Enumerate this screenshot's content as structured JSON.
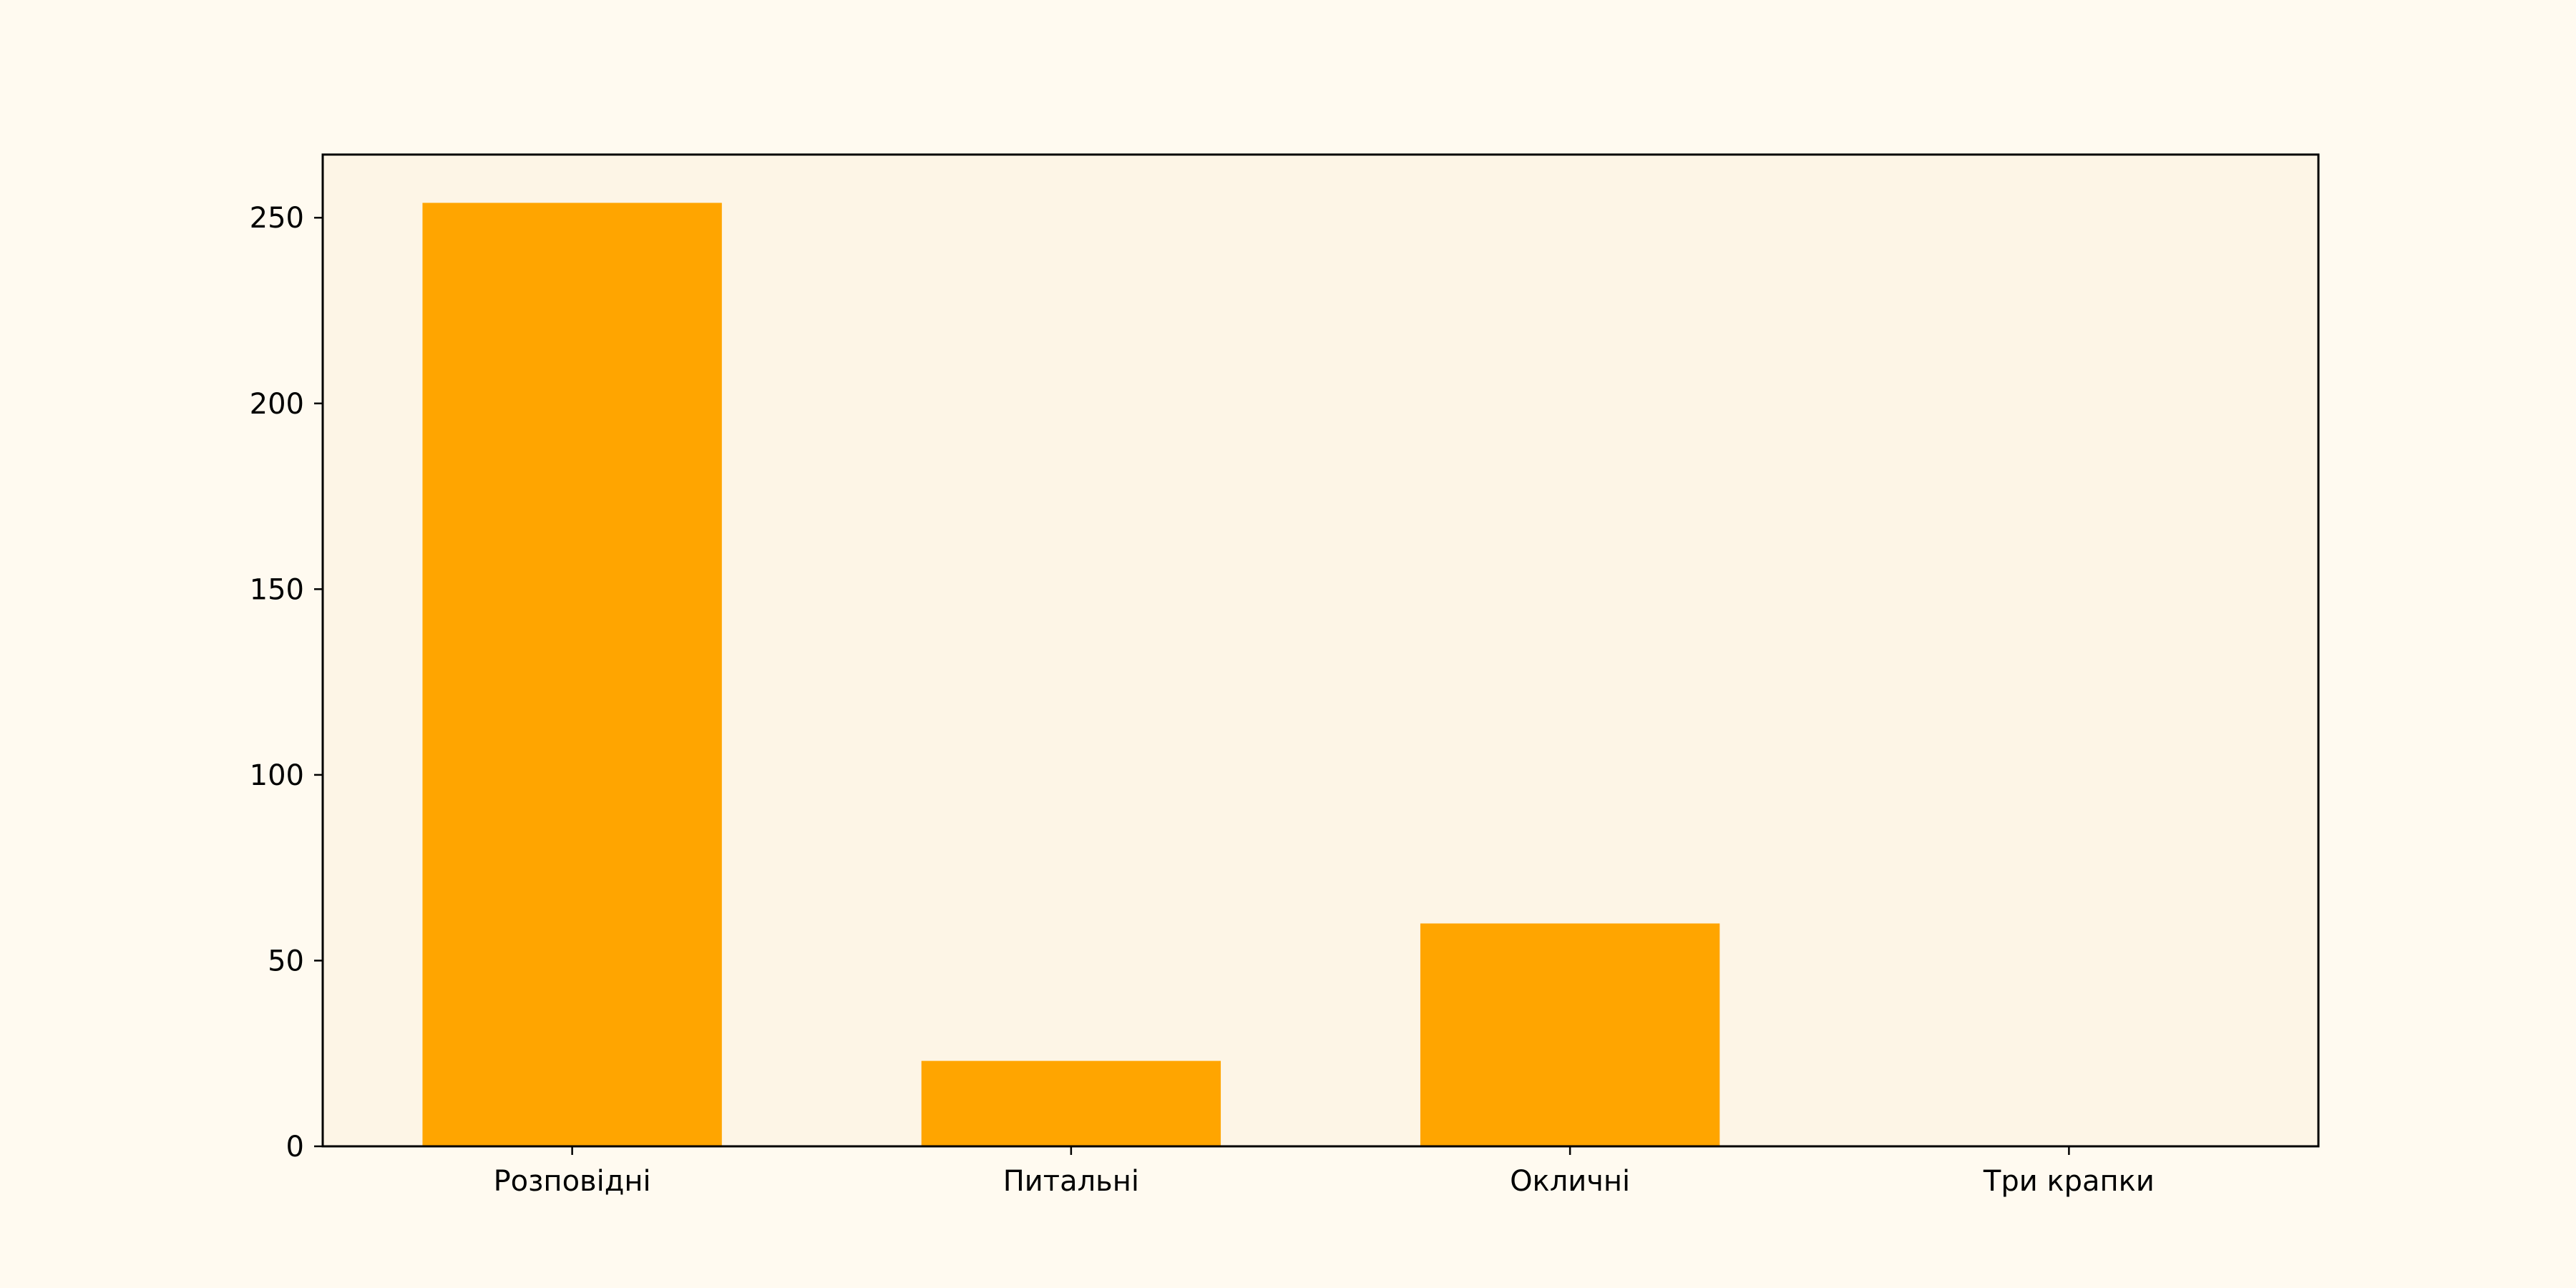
{
  "chart_data": {
    "type": "bar",
    "categories": [
      "Розповідні",
      "Питальні",
      "Окличні",
      "Три крапки"
    ],
    "values": [
      254,
      23,
      60,
      0
    ],
    "title": "",
    "xlabel": "",
    "ylabel": "",
    "ylim": [
      0,
      267
    ],
    "yticks": [
      0,
      50,
      100,
      150,
      200,
      250
    ],
    "grid": false,
    "legend": "none"
  },
  "colors": {
    "figure_background": "#fffaf0",
    "plot_background": "#fdf5e6",
    "bar": "#ffa500",
    "axis": "#000000"
  }
}
